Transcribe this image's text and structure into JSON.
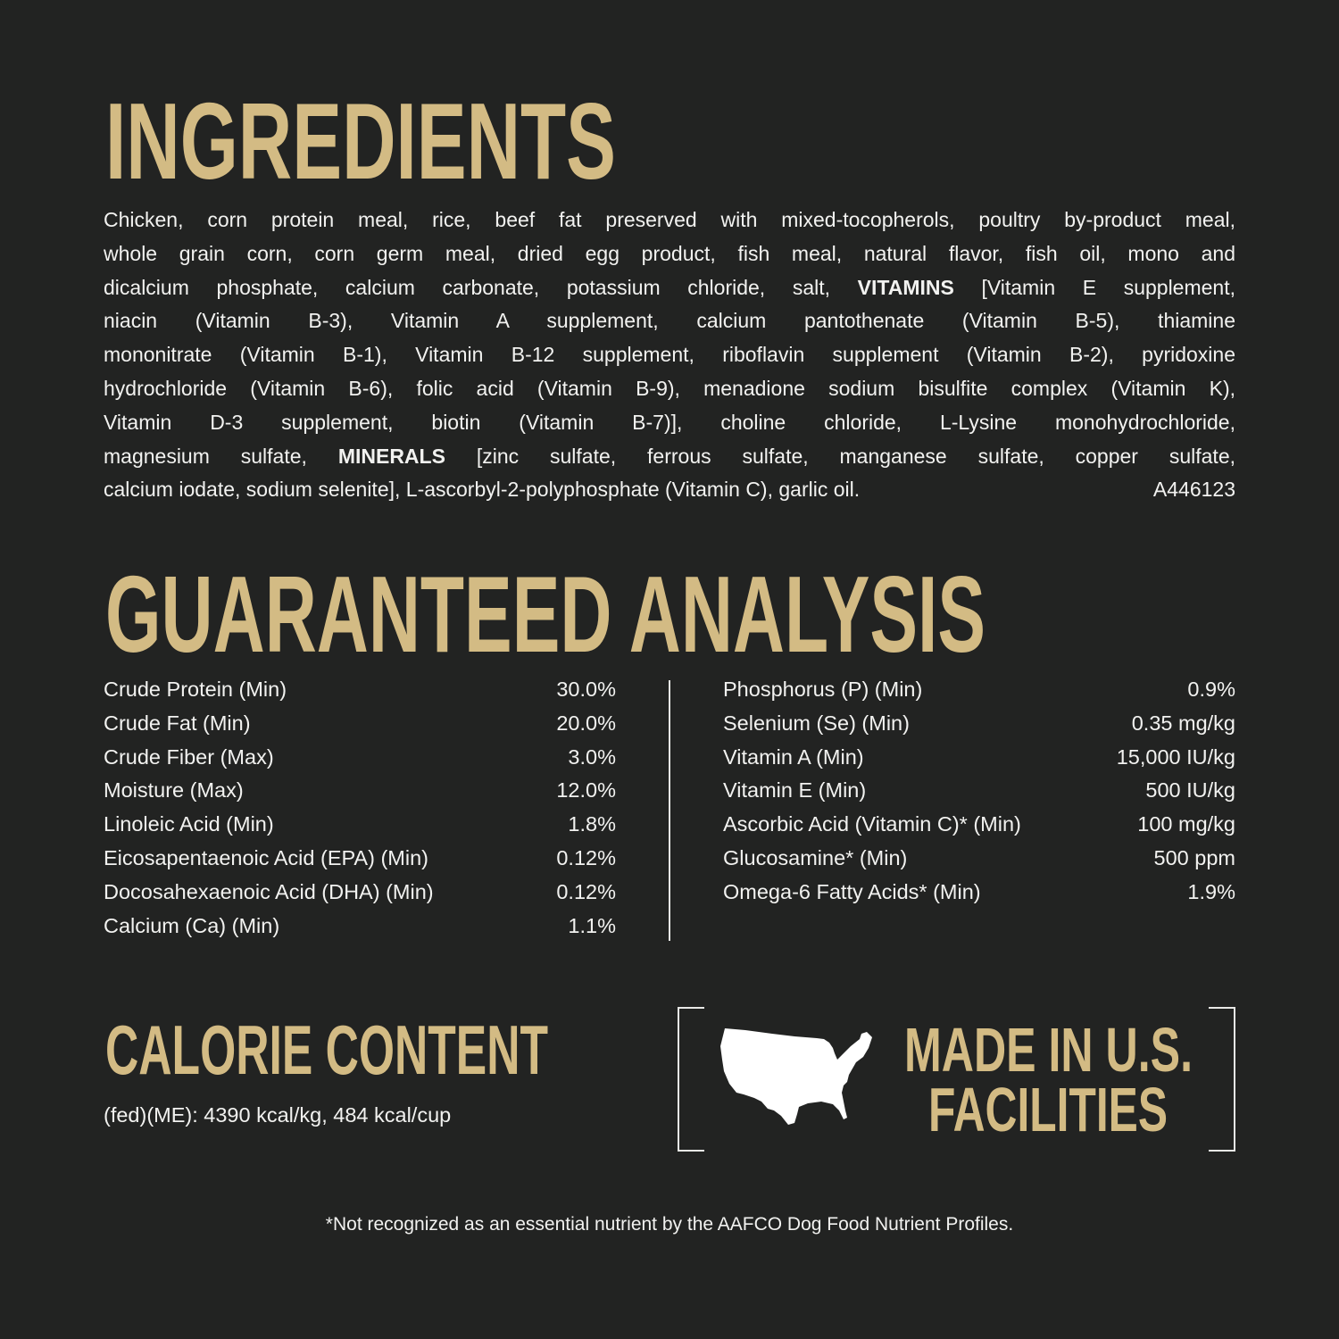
{
  "colors": {
    "background": "#222322",
    "heading": "#d3bb84",
    "text": "#f2f2f0"
  },
  "ingredients": {
    "title": "INGREDIENTS",
    "lines": [
      [
        {
          "text": "Chicken, corn protein meal, rice, beef fat preserved with mixed-tocopherols, poultry by-product meal,"
        }
      ],
      [
        {
          "text": "whole grain corn, corn germ meal, dried egg product, fish meal, natural flavor, fish oil, mono and"
        }
      ],
      [
        {
          "text": "dicalcium phosphate, calcium carbonate, potassium chloride, salt, "
        },
        {
          "text": "VITAMINS",
          "bold": true
        },
        {
          "text": " [Vitamin E supplement,"
        }
      ],
      [
        {
          "text": "niacin (Vitamin B-3), Vitamin A supplement, calcium pantothenate (Vitamin B-5), thiamine"
        }
      ],
      [
        {
          "text": "mononitrate (Vitamin B-1), Vitamin B-12 supplement, riboflavin supplement (Vitamin B-2), pyridoxine"
        }
      ],
      [
        {
          "text": "hydrochloride (Vitamin B-6), folic acid (Vitamin B-9), menadione sodium bisulfite complex (Vitamin K),"
        }
      ],
      [
        {
          "text": "Vitamin D-3 supplement, biotin (Vitamin B-7)], choline chloride, L-Lysine monohydrochloride,"
        }
      ],
      [
        {
          "text": "magnesium sulfate, "
        },
        {
          "text": "MINERALS",
          "bold": true
        },
        {
          "text": " [zinc sulfate, ferrous sulfate, manganese sulfate, copper sulfate,"
        }
      ]
    ],
    "last_line": "calcium iodate, sodium selenite], L-ascorbyl-2-polyphosphate (Vitamin C), garlic oil.",
    "code": "A446123"
  },
  "analysis": {
    "title": "GUARANTEED ANALYSIS",
    "left": [
      {
        "label": "Crude Protein (Min)",
        "value": "30.0%"
      },
      {
        "label": "Crude Fat (Min)",
        "value": "20.0%"
      },
      {
        "label": "Crude Fiber (Max)",
        "value": "3.0%"
      },
      {
        "label": "Moisture (Max)",
        "value": "12.0%"
      },
      {
        "label": "Linoleic Acid (Min)",
        "value": "1.8%"
      },
      {
        "label": "Eicosapentaenoic Acid (EPA) (Min)",
        "value": "0.12%"
      },
      {
        "label": "Docosahexaenoic Acid (DHA) (Min)",
        "value": "0.12%"
      },
      {
        "label": "Calcium (Ca) (Min)",
        "value": "1.1%"
      }
    ],
    "right": [
      {
        "label": "Phosphorus (P) (Min)",
        "value": "0.9%"
      },
      {
        "label": "Selenium (Se) (Min)",
        "value": "0.35 mg/kg"
      },
      {
        "label": "Vitamin A (Min)",
        "value": "15,000 IU/kg"
      },
      {
        "label": "Vitamin E (Min)",
        "value": "500 IU/kg"
      },
      {
        "label": "Ascorbic Acid (Vitamin C)* (Min)",
        "value": "100 mg/kg"
      },
      {
        "label": "Glucosamine* (Min)",
        "value": "500 ppm"
      },
      {
        "label": "Omega-6 Fatty Acids* (Min)",
        "value": "1.9%"
      }
    ]
  },
  "calorie": {
    "title": "CALORIE CONTENT",
    "text": "(fed)(ME): 4390 kcal/kg, 484 kcal/cup"
  },
  "made_in": {
    "icon": "usa-map-icon",
    "line1": "MADE IN U.S.",
    "line2": "FACILITIES"
  },
  "footnote": "*Not recognized as an essential nutrient by the AAFCO Dog Food Nutrient Profiles."
}
